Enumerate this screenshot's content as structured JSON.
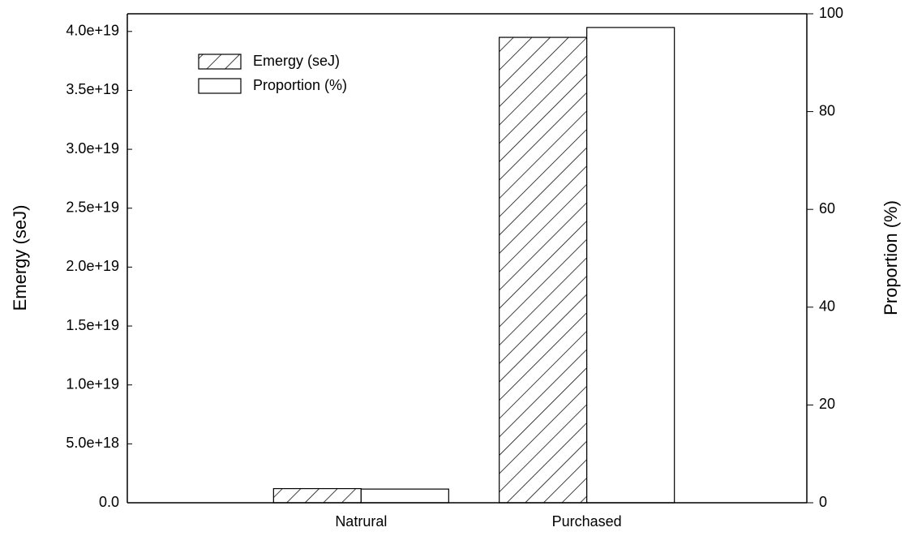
{
  "chart_data": {
    "type": "bar",
    "categories": [
      "Natrural",
      "Purchased"
    ],
    "y_label": "Emergy (seJ)",
    "y2_label": "Proportion (%)",
    "series": [
      {
        "name": "Emergy (seJ)",
        "color": "#ffffff",
        "hatch": true,
        "values": [
          1.2e+18,
          3.95e+19
        ]
      },
      {
        "name": "Proportion (%)",
        "color": "#ffffff",
        "hatch": false,
        "axis": "y2",
        "values": [
          2.8,
          97.2
        ]
      }
    ],
    "ylim": [
      0,
      4.15e+19
    ],
    "yticks": [
      {
        "value": 0,
        "label": "0.0"
      },
      {
        "value": 5e+18,
        "label": "5.0e+18"
      },
      {
        "value": 1e+19,
        "label": "1.0e+19"
      },
      {
        "value": 1.5e+19,
        "label": "1.5e+19"
      },
      {
        "value": 2e+19,
        "label": "2.0e+19"
      },
      {
        "value": 2.5e+19,
        "label": "2.5e+19"
      },
      {
        "value": 3e+19,
        "label": "3.0e+19"
      },
      {
        "value": 3.5e+19,
        "label": "3.5e+19"
      },
      {
        "value": 4e+19,
        "label": "4.0e+19"
      }
    ],
    "y2lim": [
      0,
      100
    ],
    "y2ticks": [
      0,
      20,
      40,
      60,
      80,
      100
    ],
    "legend": "upper-left"
  }
}
